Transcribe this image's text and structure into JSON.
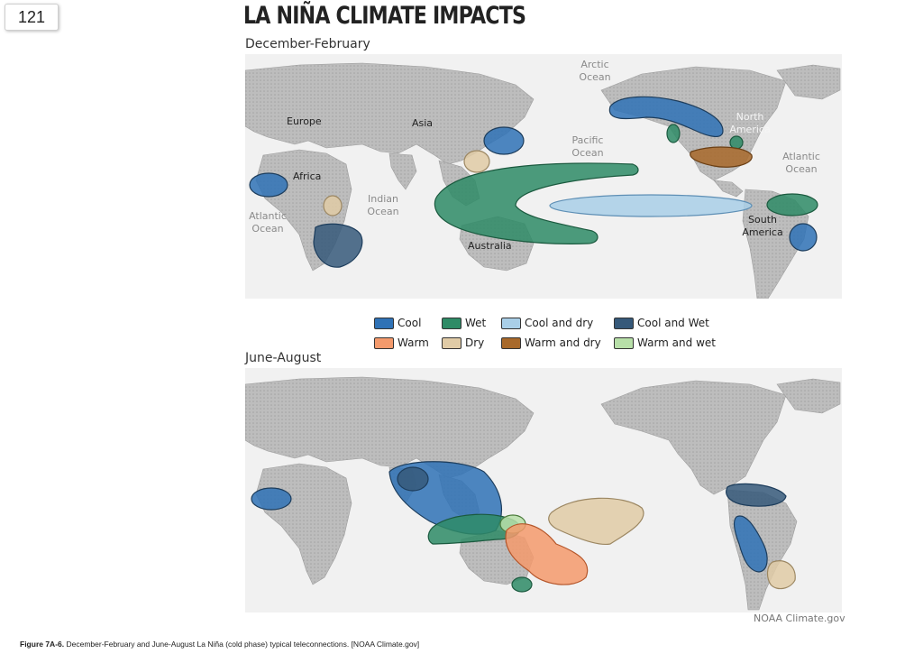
{
  "page_number": "121",
  "title": "LA NIÑA CLIMATE IMPACTS",
  "seasons": {
    "winter": "December-February",
    "summer": "June-August"
  },
  "map_labels": {
    "arctic": "Arctic Ocean",
    "europe": "Europe",
    "asia": "Asia",
    "africa": "Africa",
    "pacific": "Pacific Ocean",
    "north_america": "North America",
    "atlantic_right": "Atlantic Ocean",
    "indian": "Indian Ocean",
    "atlantic_left": "Atlantic Ocean",
    "australia": "Australia",
    "south_america": "South America"
  },
  "legend": [
    {
      "label": "Cool",
      "color": "#2f72b6"
    },
    {
      "label": "Wet",
      "color": "#2e8b66"
    },
    {
      "label": "Cool and dry",
      "color": "#a9cfe8"
    },
    {
      "label": "Cool and Wet",
      "color": "#36597a"
    },
    {
      "label": "Warm",
      "color": "#f49a6c"
    },
    {
      "label": "Dry",
      "color": "#e0cba6"
    },
    {
      "label": "Warm and dry",
      "color": "#a8692a"
    },
    {
      "label": "Warm and wet",
      "color": "#b7dfa8"
    }
  ],
  "credit": "NOAA Climate.gov",
  "caption": {
    "bold": "Figure 7A-6.",
    "text": " December-February and June-August La Niña (cold phase) typical teleconnections. [NOAA Climate.gov]"
  }
}
